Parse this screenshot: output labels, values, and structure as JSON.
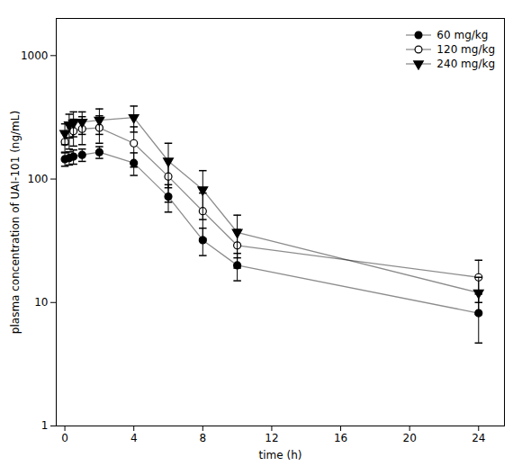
{
  "chart_data": {
    "type": "line",
    "xlabel": "time (h)",
    "ylabel": "plasma concentration of UAI-101 (ng/mL)",
    "x": [
      0,
      0.25,
      0.5,
      1,
      2,
      4,
      6,
      8,
      10,
      24
    ],
    "series": [
      {
        "name": "60 mg/kg",
        "marker": "circle",
        "values": [
          145,
          148,
          152,
          157,
          165,
          135,
          72,
          32,
          20,
          8.2
        ],
        "err_low": [
          18,
          18,
          20,
          18,
          18,
          28,
          18,
          8,
          5,
          3.5
        ],
        "err_high": [
          18,
          18,
          20,
          18,
          18,
          28,
          18,
          8,
          5,
          3.5
        ]
      },
      {
        "name": "120 mg/kg",
        "marker": "circle-open",
        "values": [
          200,
          230,
          245,
          255,
          260,
          195,
          105,
          55,
          29,
          16
        ],
        "err_low": [
          35,
          55,
          60,
          65,
          65,
          70,
          40,
          22,
          10,
          6
        ],
        "err_high": [
          35,
          55,
          60,
          65,
          65,
          70,
          40,
          22,
          10,
          6
        ]
      },
      {
        "name": "240 mg/kg",
        "marker": "triangle-down",
        "values": [
          235,
          275,
          285,
          290,
          300,
          315,
          140,
          82,
          37,
          12
        ],
        "err_low": [
          45,
          60,
          65,
          60,
          70,
          75,
          55,
          35,
          14,
          4
        ],
        "err_high": [
          45,
          60,
          65,
          60,
          70,
          75,
          55,
          35,
          14,
          4
        ]
      }
    ],
    "color": "#000000",
    "xlim": [
      -0.5,
      25.5
    ],
    "ylim": [
      1,
      2000
    ],
    "xticks": [
      0,
      4,
      8,
      12,
      16,
      20,
      24
    ],
    "yticks": [
      1,
      10,
      100,
      1000
    ],
    "log": "y",
    "grid": false,
    "legend": "upper right"
  }
}
